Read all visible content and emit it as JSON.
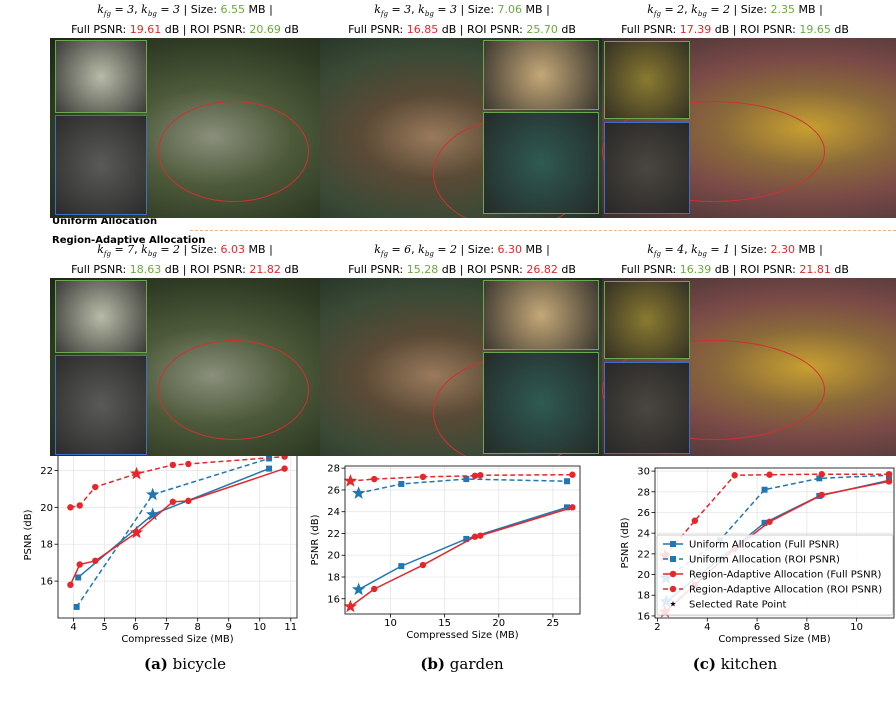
{
  "figure": {
    "labels": {
      "k": "k",
      "fg": "fg",
      "bg": "bg",
      "eq": "=",
      "comma": ",",
      "size": "| Size:",
      "mb": "MB |",
      "full": "Full PSNR:",
      "mid": "dB | ROI PSNR:",
      "db": "dB"
    },
    "rows": [
      {
        "label": "Uniform Allocation",
        "colors": {
          "size": "#6aaa3c",
          "full": "#e8262a",
          "roi": "#6aaa3c"
        },
        "panels": [
          {
            "k_fg": 3,
            "k_bg": 3,
            "size": "6.55",
            "full_psnr": "19.61",
            "roi_psnr": "20.69"
          },
          {
            "k_fg": 3,
            "k_bg": 3,
            "size": "7.06",
            "full_psnr": "16.85",
            "roi_psnr": "25.70"
          },
          {
            "k_fg": 2,
            "k_bg": 2,
            "size": "2.35",
            "full_psnr": "17.39",
            "roi_psnr": "19.65"
          }
        ]
      },
      {
        "label": "Region-Adaptive Allocation",
        "colors": {
          "size": "#e8262a",
          "full": "#6aaa3c",
          "roi": "#e8262a"
        },
        "panels": [
          {
            "k_fg": 7,
            "k_bg": 2,
            "size": "6.03",
            "full_psnr": "18.63",
            "roi_psnr": "21.82"
          },
          {
            "k_fg": 6,
            "k_bg": 2,
            "size": "6.30",
            "full_psnr": "15.28",
            "roi_psnr": "26.82"
          },
          {
            "k_fg": 4,
            "k_bg": 1,
            "size": "2.30",
            "full_psnr": "16.39",
            "roi_psnr": "21.81"
          }
        ]
      }
    ],
    "captions": [
      {
        "tag": "(a)",
        "text": "bicycle"
      },
      {
        "tag": "(b)",
        "text": "garden"
      },
      {
        "tag": "(c)",
        "text": "kitchen"
      }
    ]
  },
  "chart_data": [
    {
      "type": "line",
      "x_label": "Compressed Size (MB)",
      "y_label": "PSNR (dB)",
      "grid": true,
      "xlim": [
        3.5,
        11.2
      ],
      "xticks": [
        4,
        5,
        6,
        7,
        8,
        9,
        10,
        11
      ],
      "ylim": [
        14,
        23
      ],
      "yticks": [
        16,
        18,
        20,
        22
      ],
      "series": [
        {
          "color": "#1f77b4",
          "dashed": false,
          "marker": "square",
          "selected": 1,
          "x": [
            4.15,
            6.55,
            10.3
          ],
          "values": [
            16.2,
            19.61,
            22.1
          ]
        },
        {
          "color": "#1f77b4",
          "dashed": true,
          "marker": "square",
          "selected": 1,
          "x": [
            4.1,
            6.55,
            10.3
          ],
          "values": [
            14.6,
            20.69,
            22.65
          ]
        },
        {
          "color": "#e8262a",
          "dashed": false,
          "marker": "circle",
          "selected": 3,
          "x": [
            3.9,
            4.2,
            4.7,
            6.03,
            7.2,
            7.7,
            10.8
          ],
          "values": [
            15.8,
            16.9,
            17.1,
            18.63,
            20.3,
            20.35,
            22.1
          ]
        },
        {
          "color": "#e8262a",
          "dashed": true,
          "marker": "circle",
          "selected": 3,
          "x": [
            3.9,
            4.2,
            4.7,
            6.03,
            7.2,
            7.7,
            10.8
          ],
          "values": [
            20.0,
            20.1,
            21.1,
            21.82,
            22.3,
            22.35,
            22.75
          ]
        }
      ]
    },
    {
      "type": "line",
      "x_label": "Compressed Size (MB)",
      "y_label": "PSNR (dB)",
      "grid": true,
      "xlim": [
        5.8,
        27.5
      ],
      "xticks": [
        10,
        15,
        20,
        25
      ],
      "ylim": [
        14.6,
        28.2
      ],
      "yticks": [
        16,
        18,
        20,
        22,
        24,
        26,
        28
      ],
      "series": [
        {
          "color": "#1f77b4",
          "dashed": false,
          "marker": "square",
          "selected": 0,
          "x": [
            7.06,
            11,
            17,
            26.3
          ],
          "values": [
            16.85,
            19.0,
            21.5,
            24.4
          ]
        },
        {
          "color": "#1f77b4",
          "dashed": true,
          "marker": "square",
          "selected": 0,
          "x": [
            7.06,
            11,
            17,
            26.3
          ],
          "values": [
            25.7,
            26.55,
            27.0,
            26.8
          ]
        },
        {
          "color": "#e8262a",
          "dashed": false,
          "marker": "circle",
          "selected": 0,
          "x": [
            6.3,
            8.5,
            13,
            17.8,
            18.3,
            26.8
          ],
          "values": [
            15.28,
            16.9,
            19.1,
            21.7,
            21.8,
            24.4
          ]
        },
        {
          "color": "#e8262a",
          "dashed": true,
          "marker": "circle",
          "selected": 0,
          "x": [
            6.3,
            8.5,
            13,
            17.8,
            18.3,
            26.8
          ],
          "values": [
            26.82,
            27.0,
            27.2,
            27.3,
            27.35,
            27.4
          ]
        }
      ]
    },
    {
      "type": "line",
      "x_label": "Compressed Size (MB)",
      "y_label": "PSNR (dB)",
      "grid": true,
      "legend": "lower right",
      "selected_label": "Selected Rate Point",
      "xlim": [
        1.9,
        11.5
      ],
      "xticks": [
        2,
        4,
        6,
        8,
        10
      ],
      "ylim": [
        15.8,
        30.3
      ],
      "yticks": [
        16,
        18,
        20,
        22,
        24,
        26,
        28,
        30
      ],
      "series": [
        {
          "name": "Uniform Allocation (Full PSNR)",
          "color": "#1f77b4",
          "dashed": false,
          "marker": "square",
          "selected": 0,
          "x": [
            2.35,
            4.5,
            6.3,
            8.5,
            11.3
          ],
          "values": [
            17.39,
            21.5,
            25.0,
            27.6,
            29.1
          ]
        },
        {
          "name": "Uniform Allocation (ROI PSNR)",
          "color": "#1f77b4",
          "dashed": true,
          "marker": "square",
          "selected": 0,
          "x": [
            2.35,
            4.5,
            6.3,
            8.5,
            11.3
          ],
          "values": [
            19.65,
            23.3,
            28.2,
            29.3,
            29.6
          ]
        },
        {
          "name": "Region-Adaptive Allocation (Full PSNR)",
          "color": "#e8262a",
          "dashed": false,
          "marker": "circle",
          "selected": 0,
          "x": [
            2.3,
            3.5,
            5.1,
            6.5,
            8.6,
            11.3
          ],
          "values": [
            16.39,
            19.0,
            22.5,
            25.1,
            27.7,
            29.0
          ]
        },
        {
          "name": "Region-Adaptive Allocation (ROI PSNR)",
          "color": "#e8262a",
          "dashed": true,
          "marker": "circle",
          "selected": 0,
          "x": [
            2.3,
            3.5,
            5.1,
            6.5,
            8.6,
            11.3
          ],
          "values": [
            21.81,
            25.2,
            29.6,
            29.65,
            29.7,
            29.7
          ]
        }
      ]
    }
  ]
}
